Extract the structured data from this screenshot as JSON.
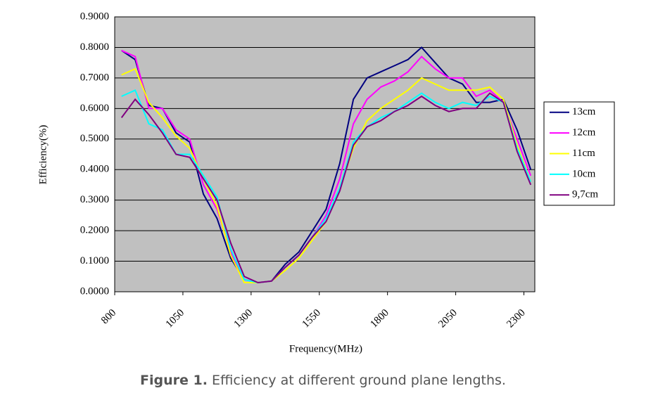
{
  "chart_data": {
    "type": "line",
    "caption_label": "Figure 1.",
    "caption": "Efficiency at different ground plane lengths.",
    "xlabel": "Frequency(MHz)",
    "ylabel": "Efficiency(%)",
    "x": [
      825,
      875,
      925,
      975,
      1025,
      1075,
      1125,
      1175,
      1225,
      1275,
      1325,
      1375,
      1425,
      1475,
      1525,
      1575,
      1625,
      1675,
      1725,
      1775,
      1825,
      1875,
      1925,
      1975,
      2025,
      2075,
      2125,
      2175,
      2225,
      2275,
      2325
    ],
    "series": [
      {
        "name": "13cm",
        "color": "#000080",
        "values": [
          0.79,
          0.76,
          0.61,
          0.6,
          0.52,
          0.49,
          0.32,
          0.24,
          0.11,
          0.04,
          0.03,
          0.035,
          0.09,
          0.13,
          0.2,
          0.27,
          0.42,
          0.63,
          0.7,
          0.72,
          0.74,
          0.76,
          0.8,
          0.75,
          0.7,
          0.68,
          0.62,
          0.62,
          0.63,
          0.53,
          0.4
        ]
      },
      {
        "name": "12cm",
        "color": "#ff00ff",
        "values": [
          0.79,
          0.77,
          0.6,
          0.6,
          0.53,
          0.5,
          0.35,
          0.27,
          0.13,
          0.04,
          0.03,
          0.035,
          0.08,
          0.12,
          0.18,
          0.25,
          0.37,
          0.55,
          0.63,
          0.67,
          0.69,
          0.72,
          0.77,
          0.73,
          0.7,
          0.7,
          0.64,
          0.66,
          0.62,
          0.5,
          0.38
        ]
      },
      {
        "name": "11cm",
        "color": "#ffff00",
        "values": [
          0.71,
          0.73,
          0.62,
          0.57,
          0.51,
          0.47,
          0.37,
          0.28,
          0.12,
          0.03,
          0.03,
          0.035,
          0.07,
          0.11,
          0.17,
          0.23,
          0.34,
          0.47,
          0.56,
          0.6,
          0.63,
          0.66,
          0.7,
          0.68,
          0.66,
          0.66,
          0.66,
          0.67,
          0.63,
          0.48,
          0.36
        ]
      },
      {
        "name": "10cm",
        "color": "#00ffff",
        "values": [
          0.64,
          0.66,
          0.55,
          0.53,
          0.45,
          0.45,
          0.38,
          0.31,
          0.14,
          0.04,
          0.03,
          0.035,
          0.08,
          0.12,
          0.18,
          0.24,
          0.34,
          0.49,
          0.54,
          0.57,
          0.59,
          0.62,
          0.65,
          0.62,
          0.6,
          0.62,
          0.61,
          0.64,
          0.62,
          0.47,
          0.36
        ]
      },
      {
        "name": "9,7cm",
        "color": "#800080",
        "values": [
          0.57,
          0.63,
          0.58,
          0.52,
          0.45,
          0.44,
          0.37,
          0.3,
          0.16,
          0.05,
          0.03,
          0.035,
          0.08,
          0.12,
          0.18,
          0.23,
          0.33,
          0.48,
          0.54,
          0.56,
          0.59,
          0.61,
          0.64,
          0.61,
          0.59,
          0.6,
          0.6,
          0.65,
          0.62,
          0.46,
          0.35
        ]
      }
    ],
    "xlim": [
      800,
      2340
    ],
    "xticks": [
      800,
      1050,
      1300,
      1550,
      1800,
      2050,
      2300
    ],
    "ylim": [
      0,
      0.9
    ],
    "yticks": [
      {
        "value": 0,
        "label": "0.0000"
      },
      {
        "value": 0.1,
        "label": "0.1000"
      },
      {
        "value": 0.2,
        "label": "0.2000"
      },
      {
        "value": 0.3,
        "label": "0.3000"
      },
      {
        "value": 0.4,
        "label": "0.4000"
      },
      {
        "value": 0.5,
        "label": "0.5000"
      },
      {
        "value": 0.6,
        "label": "0.6000"
      },
      {
        "value": 0.7,
        "label": "0.7000"
      },
      {
        "value": 0.8,
        "label": "0.8000"
      },
      {
        "value": 0.9,
        "label": "0.9000"
      }
    ],
    "grid": true,
    "plot_background": "#c0c0c0",
    "legend": "right"
  }
}
